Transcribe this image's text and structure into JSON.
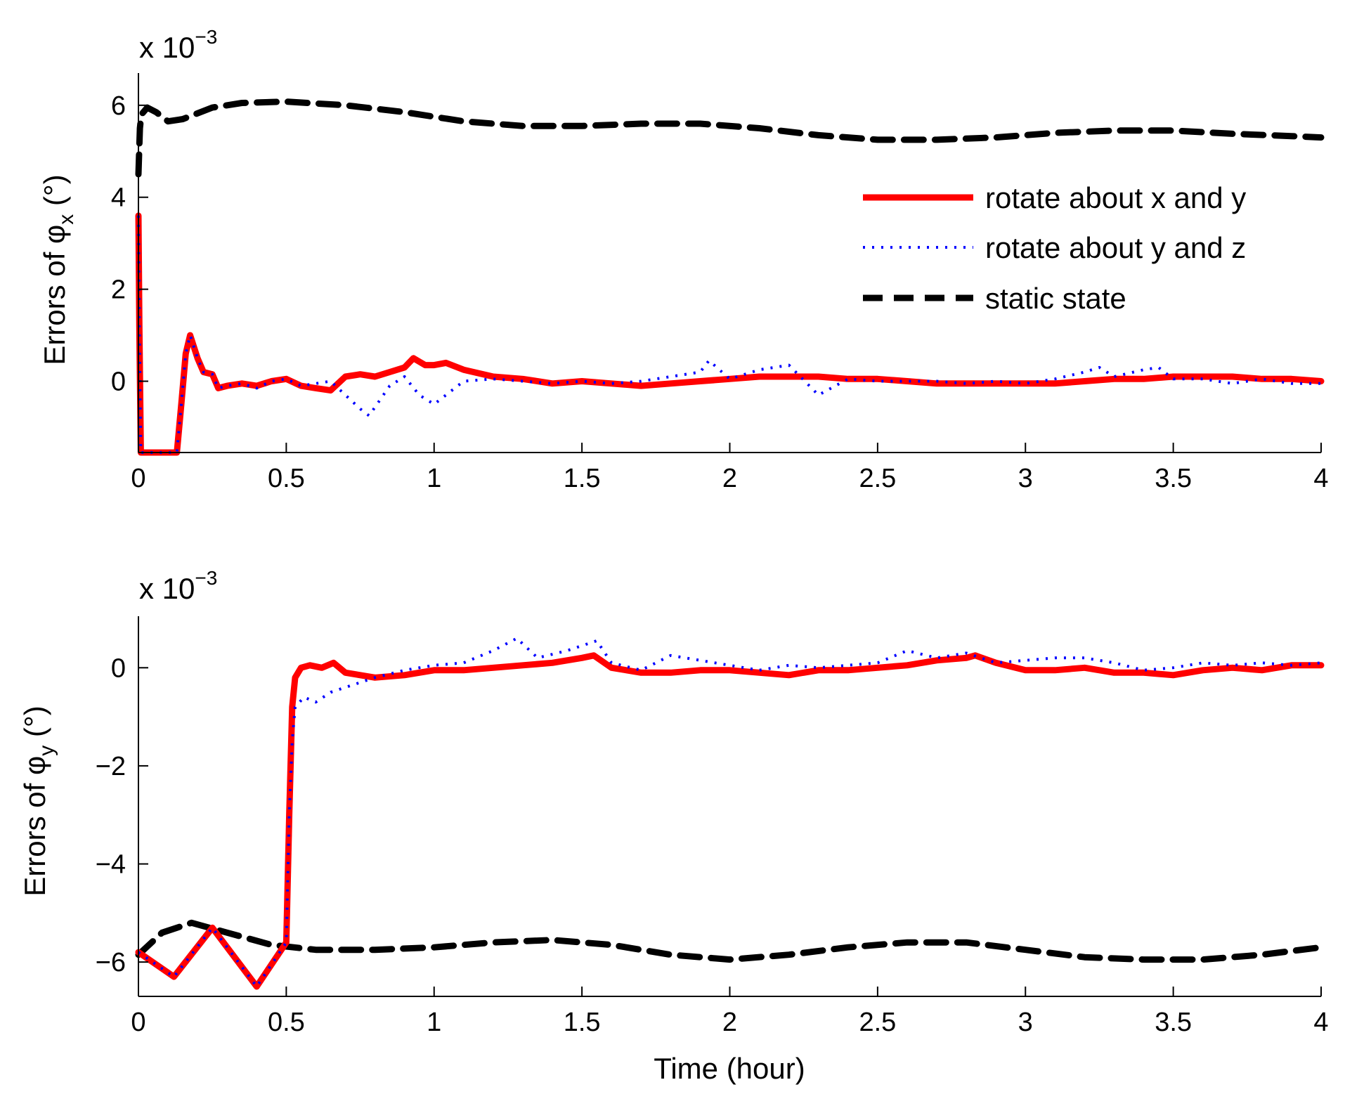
{
  "figure": {
    "xlabel": "Time (hour)",
    "exponent_prefix": "x 10",
    "exponent_power": "−3",
    "degree_unit": "(°)",
    "legend": {
      "location": "upper-right of top panel",
      "entries": [
        {
          "label": "rotate about x and y",
          "style": "solid"
        },
        {
          "label": "rotate about y and z",
          "style": "dotted"
        },
        {
          "label": "static state",
          "style": "dashed"
        }
      ]
    },
    "colors": {
      "series_xy": "#ff0000",
      "series_yz": "#0000ff",
      "series_static": "#000000",
      "axes": "#000000"
    }
  },
  "chart_data": [
    {
      "type": "line",
      "title": "",
      "ylabel_prefix": "Errors of φ",
      "ylabel_sub": "x",
      "xlabel": "",
      "xlim": [
        0,
        4
      ],
      "ylim": [
        -1.55,
        6.7
      ],
      "scale_note": "x 10^-3",
      "xticks": [
        0,
        0.5,
        1,
        1.5,
        2,
        2.5,
        3,
        3.5,
        4
      ],
      "xtick_labels": [
        "0",
        "0.5",
        "1",
        "1.5",
        "2",
        "2.5",
        "3",
        "3.5",
        "4"
      ],
      "yticks": [
        0,
        2,
        4,
        6
      ],
      "ytick_labels": [
        "0",
        "2",
        "4",
        "6"
      ],
      "series": [
        {
          "name": "rotate about x and y",
          "x": [
            0,
            0.003,
            0.008,
            0.015,
            0.08,
            0.13,
            0.145,
            0.16,
            0.175,
            0.2,
            0.22,
            0.25,
            0.27,
            0.3,
            0.35,
            0.4,
            0.45,
            0.5,
            0.55,
            0.6,
            0.65,
            0.7,
            0.75,
            0.8,
            0.85,
            0.9,
            0.93,
            0.97,
            1.0,
            1.04,
            1.1,
            1.2,
            1.3,
            1.4,
            1.5,
            1.6,
            1.7,
            1.8,
            1.9,
            2.0,
            2.1,
            2.2,
            2.3,
            2.4,
            2.5,
            2.6,
            2.7,
            2.8,
            2.9,
            3.0,
            3.1,
            3.2,
            3.3,
            3.4,
            3.5,
            3.6,
            3.7,
            3.8,
            3.9,
            4.0
          ],
          "y": [
            3.6,
            1.2,
            -1.55,
            -1.55,
            -1.55,
            -1.55,
            -0.5,
            0.6,
            1.0,
            0.5,
            0.2,
            0.15,
            -0.15,
            -0.1,
            -0.05,
            -0.1,
            0.0,
            0.05,
            -0.1,
            -0.15,
            -0.2,
            0.1,
            0.15,
            0.1,
            0.2,
            0.3,
            0.5,
            0.35,
            0.35,
            0.4,
            0.25,
            0.1,
            0.05,
            -0.05,
            0.0,
            -0.05,
            -0.1,
            -0.05,
            0.0,
            0.05,
            0.1,
            0.1,
            0.1,
            0.05,
            0.05,
            0.0,
            -0.05,
            -0.05,
            -0.05,
            -0.05,
            -0.05,
            0.0,
            0.05,
            0.05,
            0.1,
            0.1,
            0.1,
            0.05,
            0.05,
            0.0
          ]
        },
        {
          "name": "rotate about y and z",
          "x": [
            0,
            0.003,
            0.008,
            0.015,
            0.08,
            0.13,
            0.145,
            0.16,
            0.175,
            0.2,
            0.22,
            0.25,
            0.27,
            0.3,
            0.35,
            0.4,
            0.45,
            0.5,
            0.55,
            0.6,
            0.65,
            0.7,
            0.75,
            0.78,
            0.85,
            0.9,
            0.95,
            1.0,
            1.05,
            1.1,
            1.2,
            1.3,
            1.4,
            1.5,
            1.6,
            1.7,
            1.8,
            1.9,
            1.93,
            2.0,
            2.1,
            2.2,
            2.3,
            2.4,
            2.5,
            2.6,
            2.7,
            2.8,
            2.9,
            3.0,
            3.1,
            3.2,
            3.25,
            3.3,
            3.4,
            3.45,
            3.5,
            3.6,
            3.7,
            3.8,
            3.9,
            4.0
          ],
          "y": [
            3.6,
            1.2,
            -1.55,
            -1.55,
            -1.55,
            -1.55,
            -0.5,
            0.6,
            1.0,
            0.5,
            0.2,
            0.15,
            -0.15,
            -0.1,
            -0.05,
            -0.15,
            0.0,
            0.05,
            -0.1,
            -0.05,
            0.0,
            -0.3,
            -0.6,
            -0.75,
            -0.1,
            0.1,
            -0.3,
            -0.5,
            -0.25,
            0.0,
            0.05,
            0.0,
            -0.05,
            0.0,
            -0.05,
            0.0,
            0.1,
            0.2,
            0.45,
            0.05,
            0.25,
            0.35,
            -0.3,
            0.05,
            0.0,
            0.0,
            0.0,
            -0.05,
            0.0,
            -0.05,
            0.05,
            0.2,
            0.3,
            0.1,
            0.25,
            0.3,
            0.05,
            0.05,
            -0.05,
            0.05,
            -0.05,
            -0.05
          ]
        },
        {
          "name": "static state",
          "x": [
            0,
            0.005,
            0.01,
            0.03,
            0.06,
            0.1,
            0.15,
            0.25,
            0.35,
            0.5,
            0.7,
            0.9,
            1.1,
            1.3,
            1.5,
            1.7,
            1.9,
            2.1,
            2.3,
            2.5,
            2.7,
            2.9,
            3.1,
            3.3,
            3.5,
            3.7,
            3.9,
            4.0
          ],
          "y": [
            4.5,
            5.5,
            5.8,
            5.95,
            5.85,
            5.65,
            5.7,
            5.95,
            6.05,
            6.08,
            6.0,
            5.85,
            5.65,
            5.55,
            5.55,
            5.6,
            5.6,
            5.5,
            5.35,
            5.25,
            5.25,
            5.3,
            5.4,
            5.45,
            5.45,
            5.38,
            5.33,
            5.3
          ]
        }
      ]
    },
    {
      "type": "line",
      "title": "",
      "ylabel_prefix": "Errors of φ",
      "ylabel_sub": "y",
      "xlabel": "Time (hour)",
      "xlim": [
        0,
        4
      ],
      "ylim": [
        -6.7,
        1.05
      ],
      "scale_note": "x 10^-3",
      "xticks": [
        0,
        0.5,
        1,
        1.5,
        2,
        2.5,
        3,
        3.5,
        4
      ],
      "xtick_labels": [
        "0",
        "0.5",
        "1",
        "1.5",
        "2",
        "2.5",
        "3",
        "3.5",
        "4"
      ],
      "yticks": [
        -6,
        -4,
        -2,
        0
      ],
      "ytick_labels": [
        "−6",
        "−4",
        "−2",
        "0"
      ],
      "series": [
        {
          "name": "rotate about x and y",
          "x": [
            0,
            0.12,
            0.25,
            0.4,
            0.5,
            0.51,
            0.52,
            0.53,
            0.55,
            0.58,
            0.62,
            0.66,
            0.7,
            0.8,
            0.9,
            1.0,
            1.1,
            1.2,
            1.3,
            1.4,
            1.5,
            1.54,
            1.6,
            1.7,
            1.8,
            1.9,
            2.0,
            2.1,
            2.2,
            2.3,
            2.4,
            2.5,
            2.6,
            2.7,
            2.8,
            2.83,
            2.9,
            3.0,
            3.1,
            3.2,
            3.3,
            3.4,
            3.5,
            3.6,
            3.7,
            3.8,
            3.9,
            4.0
          ],
          "y": [
            -5.8,
            -6.3,
            -5.3,
            -6.5,
            -5.6,
            -3.0,
            -0.8,
            -0.2,
            0.0,
            0.05,
            0.0,
            0.1,
            -0.1,
            -0.2,
            -0.15,
            -0.05,
            -0.05,
            0.0,
            0.05,
            0.1,
            0.2,
            0.25,
            0.0,
            -0.1,
            -0.1,
            -0.05,
            -0.05,
            -0.1,
            -0.15,
            -0.05,
            -0.05,
            0.0,
            0.05,
            0.15,
            0.2,
            0.25,
            0.1,
            -0.05,
            -0.05,
            0.0,
            -0.1,
            -0.1,
            -0.15,
            -0.05,
            0.0,
            -0.05,
            0.05,
            0.05
          ]
        },
        {
          "name": "rotate about y and z",
          "x": [
            0,
            0.12,
            0.25,
            0.4,
            0.5,
            0.51,
            0.52,
            0.53,
            0.56,
            0.6,
            0.65,
            0.7,
            0.8,
            0.9,
            1.0,
            1.1,
            1.2,
            1.28,
            1.35,
            1.45,
            1.55,
            1.6,
            1.7,
            1.8,
            1.9,
            2.0,
            2.1,
            2.2,
            2.3,
            2.4,
            2.5,
            2.6,
            2.7,
            2.8,
            2.9,
            3.0,
            3.1,
            3.2,
            3.3,
            3.4,
            3.5,
            3.6,
            3.7,
            3.8,
            3.9,
            4.0
          ],
          "y": [
            -5.8,
            -6.3,
            -5.3,
            -6.5,
            -5.6,
            -3.0,
            -1.5,
            -0.8,
            -0.6,
            -0.7,
            -0.5,
            -0.4,
            -0.2,
            -0.05,
            0.05,
            0.1,
            0.35,
            0.6,
            0.2,
            0.35,
            0.55,
            0.1,
            -0.05,
            0.25,
            0.15,
            0.05,
            -0.05,
            0.05,
            0.0,
            0.05,
            0.1,
            0.35,
            0.2,
            0.3,
            0.1,
            0.15,
            0.2,
            0.2,
            0.1,
            -0.05,
            0.0,
            0.1,
            0.05,
            0.1,
            0.05,
            0.1
          ]
        },
        {
          "name": "static state",
          "x": [
            0,
            0.08,
            0.18,
            0.3,
            0.45,
            0.6,
            0.8,
            1.0,
            1.2,
            1.4,
            1.6,
            1.8,
            2.0,
            2.2,
            2.4,
            2.6,
            2.8,
            3.0,
            3.2,
            3.4,
            3.6,
            3.8,
            4.0
          ],
          "y": [
            -5.85,
            -5.4,
            -5.2,
            -5.4,
            -5.65,
            -5.75,
            -5.75,
            -5.7,
            -5.6,
            -5.55,
            -5.65,
            -5.85,
            -5.95,
            -5.85,
            -5.7,
            -5.6,
            -5.6,
            -5.75,
            -5.9,
            -5.95,
            -5.95,
            -5.85,
            -5.7
          ]
        }
      ]
    }
  ]
}
